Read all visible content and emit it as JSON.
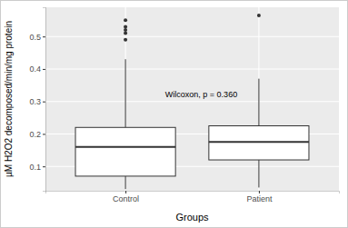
{
  "chart_data": {
    "type": "box",
    "x_label": "Groups",
    "y_label": "µM H2O2 decomposed/min/mg protein",
    "annotation": "Wilcoxon, p = 0.360",
    "categories": [
      "Control",
      "Patient"
    ],
    "boxes": [
      {
        "min": 0.03,
        "q1": 0.07,
        "median": 0.16,
        "q3": 0.22,
        "max": 0.43,
        "outliers": [
          0.55,
          0.53,
          0.52,
          0.51,
          0.49
        ]
      },
      {
        "min": 0.035,
        "q1": 0.12,
        "median": 0.175,
        "q3": 0.225,
        "max": 0.37,
        "outliers": [
          0.565
        ]
      }
    ],
    "ylim": [
      0.025,
      0.59
    ],
    "yticks": [
      0.1,
      0.2,
      0.3,
      0.4,
      0.5
    ],
    "grid": true
  }
}
